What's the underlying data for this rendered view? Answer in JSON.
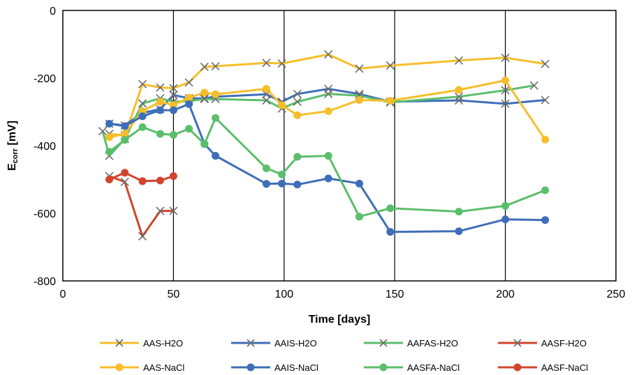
{
  "chart_data": {
    "type": "line",
    "xlabel": "Time [days]",
    "ylabel_main": "E",
    "ylabel_sub": "corr",
    "ylabel_unit": " [mV]",
    "xlim": [
      0,
      250
    ],
    "ylim": [
      -800,
      0
    ],
    "xticks": [
      0,
      50,
      100,
      150,
      200,
      250
    ],
    "yticks": [
      0,
      -200,
      -400,
      -600,
      -800
    ],
    "xtick_labels": [
      "0",
      "50",
      "100",
      "150",
      "200",
      "250"
    ],
    "ytick_labels": [
      "0",
      "-200",
      "-400",
      "-600",
      "-800"
    ],
    "vertical_gridlines": [
      50,
      100,
      150,
      200
    ],
    "legend_position": "bottom",
    "series": [
      {
        "name": "AAS-H2O",
        "color": "#F6BE2B",
        "marker": "x",
        "x": [
          21,
          28,
          36,
          44,
          50,
          57,
          64,
          69,
          92,
          99,
          120,
          134,
          148,
          179,
          200,
          218
        ],
        "y": [
          -365,
          -370,
          -218,
          -228,
          -230,
          -213,
          -167,
          -165,
          -155,
          -157,
          -130,
          -172,
          -163,
          -148,
          -140,
          -158
        ]
      },
      {
        "name": "AAIS-H2O",
        "color": "#3E6EB8",
        "marker": "x",
        "x": [
          21,
          28,
          36,
          44,
          50,
          57,
          64,
          69,
          92,
          99,
          106,
          120,
          134,
          148,
          179,
          200,
          218
        ],
        "y": [
          -335,
          -340,
          -303,
          -292,
          -250,
          -260,
          -260,
          -255,
          -248,
          -270,
          -247,
          -232,
          -247,
          -270,
          -266,
          -276,
          -265
        ]
      },
      {
        "name": "AAFAS-H2O",
        "color": "#5BBE6B",
        "marker": "x",
        "x": [
          18,
          21,
          28,
          36,
          44,
          50,
          57,
          64,
          69,
          92,
          99,
          106,
          120,
          134,
          148,
          179,
          200,
          213
        ],
        "y": [
          -357,
          -430,
          -380,
          -275,
          -260,
          -270,
          -268,
          -262,
          -262,
          -266,
          -290,
          -270,
          -247,
          -252,
          -272,
          -255,
          -236,
          -222
        ]
      },
      {
        "name": "AASF-H2O",
        "color": "#D1452C",
        "marker": "x",
        "x": [
          21,
          28,
          36,
          44,
          50
        ],
        "y": [
          -490,
          -507,
          -668,
          -593,
          -593
        ]
      },
      {
        "name": "AAS-NaCl",
        "color": "#F6BE2B",
        "marker": "o",
        "x": [
          21,
          28,
          36,
          44,
          50,
          57,
          64,
          69,
          92,
          99,
          106,
          120,
          134,
          148,
          179,
          200,
          218
        ],
        "y": [
          -375,
          -365,
          -298,
          -270,
          -280,
          -258,
          -243,
          -248,
          -232,
          -280,
          -310,
          -298,
          -265,
          -267,
          -235,
          -207,
          -382
        ]
      },
      {
        "name": "AAIS-NaCl",
        "color": "#3E6EB8",
        "marker": "o",
        "x": [
          21,
          28,
          36,
          44,
          50,
          57,
          64,
          69,
          92,
          99,
          106,
          120,
          134,
          148,
          179,
          200,
          218
        ],
        "y": [
          -335,
          -342,
          -313,
          -295,
          -295,
          -277,
          -395,
          -430,
          -513,
          -512,
          -515,
          -497,
          -512,
          -655,
          -653,
          -618,
          -620
        ]
      },
      {
        "name": "AASFA-NaCl",
        "color": "#5BBE6B",
        "marker": "o",
        "x": [
          21,
          28,
          36,
          44,
          50,
          57,
          64,
          69,
          92,
          99,
          106,
          120,
          134,
          148,
          179,
          200,
          218
        ],
        "y": [
          -418,
          -383,
          -345,
          -365,
          -368,
          -350,
          -395,
          -318,
          -467,
          -485,
          -433,
          -430,
          -610,
          -585,
          -595,
          -578,
          -532
        ]
      },
      {
        "name": "AASF-NaCl",
        "color": "#D1452C",
        "marker": "o",
        "x": [
          21,
          28,
          36,
          44,
          50
        ],
        "y": [
          -500,
          -480,
          -505,
          -503,
          -490
        ]
      }
    ]
  }
}
